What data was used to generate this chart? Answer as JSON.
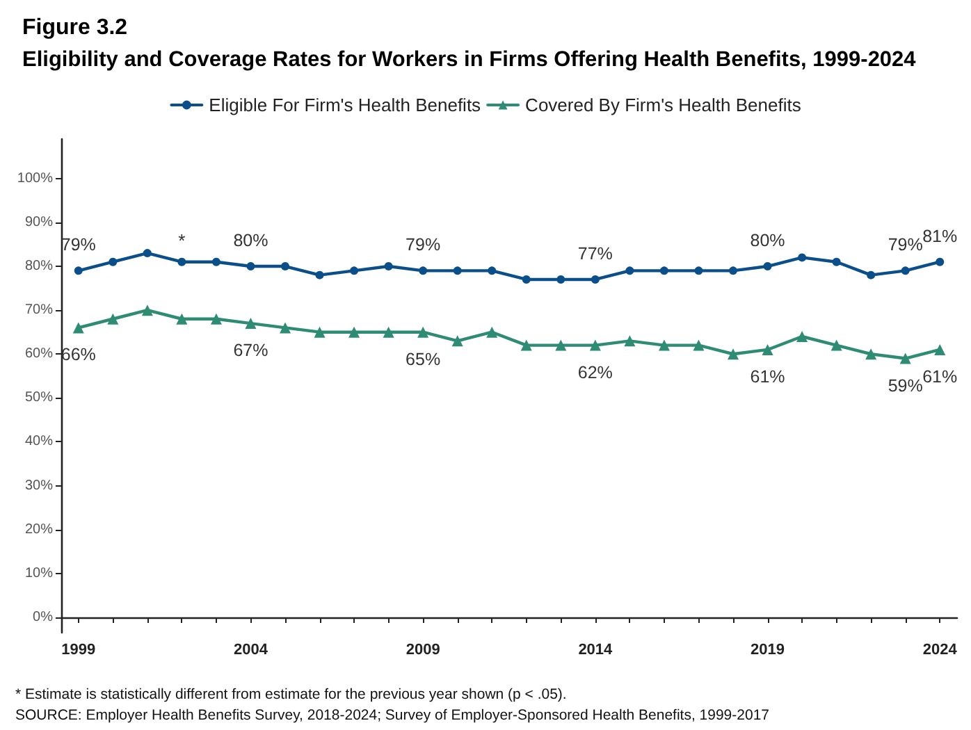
{
  "chart_data": {
    "type": "line",
    "title": "Figure 3.2",
    "subtitle": "Eligibility and Coverage Rates for Workers in Firms Offering Health Benefits, 1999-2024",
    "x": [
      1999,
      2000,
      2001,
      2002,
      2003,
      2004,
      2005,
      2006,
      2007,
      2008,
      2009,
      2010,
      2011,
      2012,
      2013,
      2014,
      2015,
      2016,
      2017,
      2018,
      2019,
      2020,
      2021,
      2022,
      2023,
      2024
    ],
    "series": [
      {
        "name": "Eligible For Firm's Health Benefits",
        "color": "#0b4f8a",
        "marker": "circle",
        "values": [
          79,
          81,
          83,
          81,
          81,
          80,
          80,
          78,
          79,
          80,
          79,
          79,
          79,
          77,
          77,
          77,
          79,
          79,
          79,
          79,
          80,
          82,
          81,
          78,
          79,
          81
        ],
        "value_labels": [
          "79%",
          null,
          null,
          null,
          null,
          "80%",
          null,
          null,
          null,
          null,
          "79%",
          null,
          null,
          null,
          null,
          "77%",
          null,
          null,
          null,
          null,
          "80%",
          null,
          null,
          null,
          "79%",
          "81%"
        ]
      },
      {
        "name": "Covered By Firm's Health Benefits",
        "color": "#2e8b74",
        "marker": "triangle",
        "values": [
          66,
          68,
          70,
          68,
          68,
          67,
          66,
          65,
          65,
          65,
          65,
          63,
          65,
          62,
          62,
          62,
          63,
          62,
          62,
          60,
          61,
          64,
          62,
          60,
          59,
          61
        ],
        "value_labels": [
          "66%",
          null,
          null,
          null,
          null,
          "67%",
          null,
          null,
          null,
          null,
          "65%",
          null,
          null,
          null,
          null,
          "62%",
          null,
          null,
          null,
          null,
          "61%",
          null,
          null,
          null,
          "59%",
          "61%"
        ]
      }
    ],
    "xlim": [
      1998.5,
      2024.5
    ],
    "xticks": [
      1999,
      {
        "value": 2000,
        "label": null
      },
      {
        "value": 2001,
        "label": null
      },
      {
        "value": 2002,
        "label": null
      },
      {
        "value": 2003,
        "label": null
      },
      2004,
      {
        "value": 2005,
        "label": null
      },
      {
        "value": 2006,
        "label": null
      },
      {
        "value": 2007,
        "label": null
      },
      {
        "value": 2008,
        "label": null
      },
      2009,
      {
        "value": 2010,
        "label": null
      },
      {
        "value": 2011,
        "label": null
      },
      {
        "value": 2012,
        "label": null
      },
      {
        "value": 2013,
        "label": null
      },
      2014,
      {
        "value": 2015,
        "label": null
      },
      {
        "value": 2016,
        "label": null
      },
      {
        "value": 2017,
        "label": null
      },
      {
        "value": 2018,
        "label": null
      },
      2019,
      {
        "value": 2020,
        "label": null
      },
      {
        "value": 2021,
        "label": null
      },
      {
        "value": 2022,
        "label": null
      },
      {
        "value": 2023,
        "label": null
      },
      2024
    ],
    "ylim": [
      -3.5,
      109
    ],
    "yticks": [
      {
        "value": 0,
        "label": "0%"
      },
      {
        "value": 10,
        "label": "10%"
      },
      {
        "value": 20,
        "label": "20%"
      },
      {
        "value": 30,
        "label": "30%"
      },
      {
        "value": 40,
        "label": "40%"
      },
      {
        "value": 50,
        "label": "50%"
      },
      {
        "value": 60,
        "label": "60%"
      },
      {
        "value": 70,
        "label": "70%"
      },
      {
        "value": 80,
        "label": "80%"
      },
      {
        "value": 90,
        "label": "90%"
      },
      {
        "value": 100,
        "label": "100%"
      }
    ],
    "grid": false,
    "legend": "top",
    "line_style": "solid",
    "annotations": [
      {
        "text": "*",
        "x": 2002,
        "y": 81
      },
      "* Estimate is statistically different from estimate for the previous year shown (p < .05).",
      "SOURCE: Employer Health Benefits Survey, 2018-2024; Survey of Employer-Sponsored Health Benefits, 1999-2017"
    ]
  }
}
